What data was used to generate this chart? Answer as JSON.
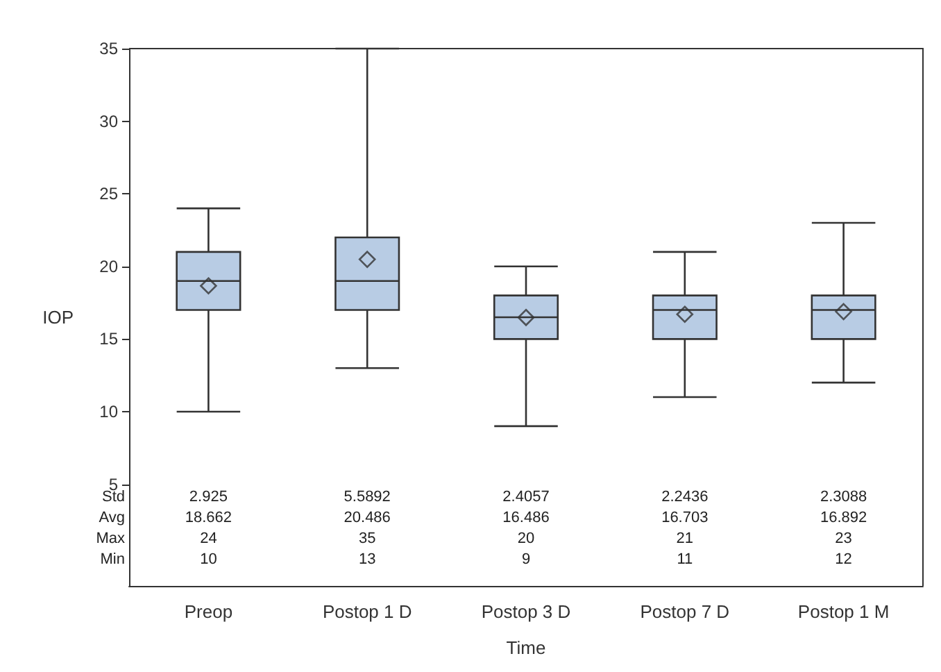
{
  "chart_data": {
    "type": "box",
    "xlabel": "Time",
    "ylabel": "IOP",
    "categories": [
      "Preop",
      "Postop 1 D",
      "Postop 3 D",
      "Postop 7 D",
      "Postop 1 M"
    ],
    "boxes": [
      {
        "low": 10,
        "q1": 17,
        "median": 19,
        "q3": 21,
        "high": 24,
        "mean": 18.662
      },
      {
        "low": 13,
        "q1": 17,
        "median": 19,
        "q3": 22,
        "high": 35,
        "mean": 20.486
      },
      {
        "low": 9,
        "q1": 15,
        "median": 16.5,
        "q3": 18,
        "high": 20,
        "mean": 16.486
      },
      {
        "low": 11,
        "q1": 15,
        "median": 17,
        "q3": 18,
        "high": 21,
        "mean": 16.703
      },
      {
        "low": 12,
        "q1": 15,
        "median": 17,
        "q3": 18,
        "high": 23,
        "mean": 16.892
      }
    ],
    "color": "#b8cce4",
    "marker": "diamond",
    "ylim": [
      -2,
      35
    ],
    "yticks": [
      5,
      10,
      15,
      20,
      25,
      30,
      35
    ],
    "grid": false,
    "annotations": [
      "Std",
      "2.925",
      "5.5892",
      "2.4057",
      "2.2436",
      "2.3088",
      "Avg",
      "18.662",
      "20.486",
      "16.486",
      "16.703",
      "16.892",
      "Max",
      "24",
      "35",
      "20",
      "21",
      "23",
      "Min",
      "10",
      "13",
      "9",
      "11",
      "12"
    ]
  }
}
